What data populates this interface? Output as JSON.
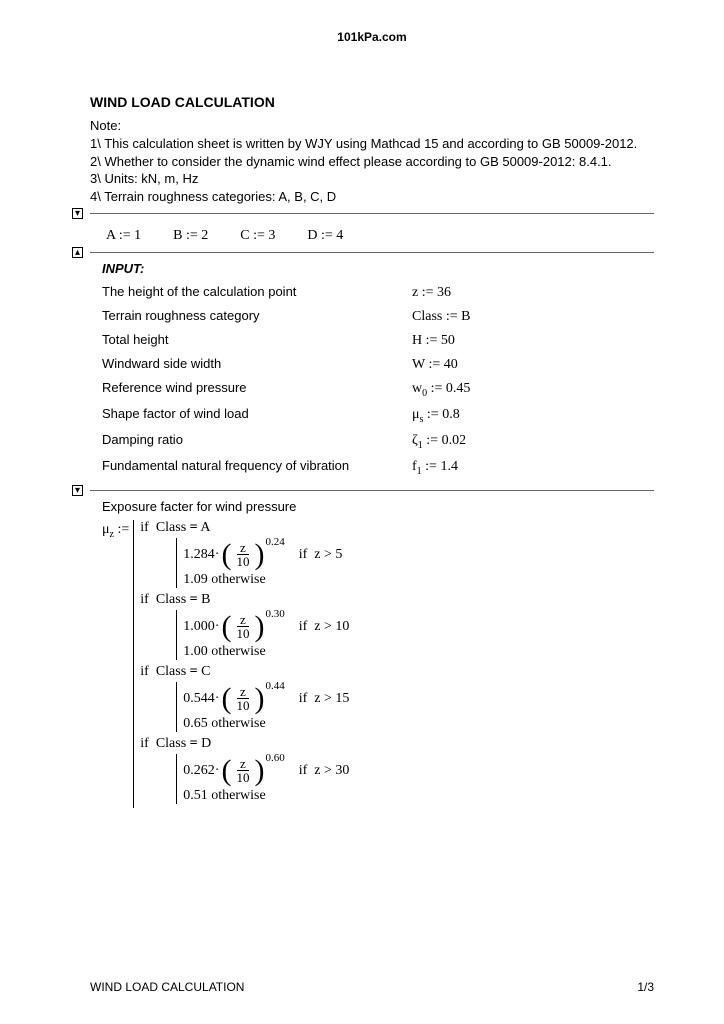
{
  "site": "101kPa.com",
  "title": "WIND LOAD CALCULATION",
  "noteLabel": "Note:",
  "notes": [
    "1\\ This calculation sheet is written by WJY using Mathcad 15 and according to GB 50009-2012.",
    "2\\ Whether to consider the dynamic wind effect please according to GB 50009-2012: 8.4.1.",
    "3\\ Units: kN, m, Hz",
    "4\\ Terrain roughness categories: A, B, C, D"
  ],
  "constants": [
    {
      "sym": "A",
      "val": "1"
    },
    {
      "sym": "B",
      "val": "2"
    },
    {
      "sym": "C",
      "val": "3"
    },
    {
      "sym": "D",
      "val": "4"
    }
  ],
  "inputHeader": "INPUT:",
  "inputs": [
    {
      "label": "The height of the calculation point",
      "sym": "z",
      "sub": "",
      "val": "36"
    },
    {
      "label": "Terrain roughness category",
      "sym": "Class",
      "sub": "",
      "val": "B"
    },
    {
      "label": "Total height",
      "sym": "H",
      "sub": "",
      "val": "50"
    },
    {
      "label": "Windward side width",
      "sym": "W",
      "sub": "",
      "val": "40"
    },
    {
      "label": "Reference wind pressure",
      "sym": "w",
      "sub": "0",
      "val": "0.45"
    },
    {
      "label": "Shape factor of wind load",
      "sym": "μ",
      "sub": "s",
      "val": "0.8"
    },
    {
      "label": "Damping ratio",
      "sym": "ζ",
      "sub": "1",
      "val": "0.02"
    },
    {
      "label": "Fundamental natural frequency of vibration",
      "sym": "f",
      "sub": "1",
      "val": "1.4"
    }
  ],
  "exposureTitle": "Exposure facter for wind pressure",
  "muz": {
    "lhs": "μ",
    "lhsSub": "z",
    "assign": ":=",
    "classes": [
      {
        "cls": "A",
        "coef": "1.284",
        "exp": "0.24",
        "zcond": "z > 5",
        "otherwise": "1.09"
      },
      {
        "cls": "B",
        "coef": "1.000",
        "exp": "0.30",
        "zcond": "z > 10",
        "otherwise": "1.00"
      },
      {
        "cls": "C",
        "coef": "0.544",
        "exp": "0.44",
        "zcond": "z > 15",
        "otherwise": "0.65"
      },
      {
        "cls": "D",
        "coef": "0.262",
        "exp": "0.60",
        "zcond": "z > 30",
        "otherwise": "0.51"
      }
    ],
    "fracNum": "z",
    "fracDen": "10",
    "ifWord": "if",
    "classWord": "Class",
    "eqWord": "=",
    "otherwiseWord": "otherwise"
  },
  "footer": {
    "title": "WIND LOAD CALCULATION",
    "page": "1/3"
  },
  "toggles": {
    "expand": "▾",
    "collapse": "▴"
  }
}
